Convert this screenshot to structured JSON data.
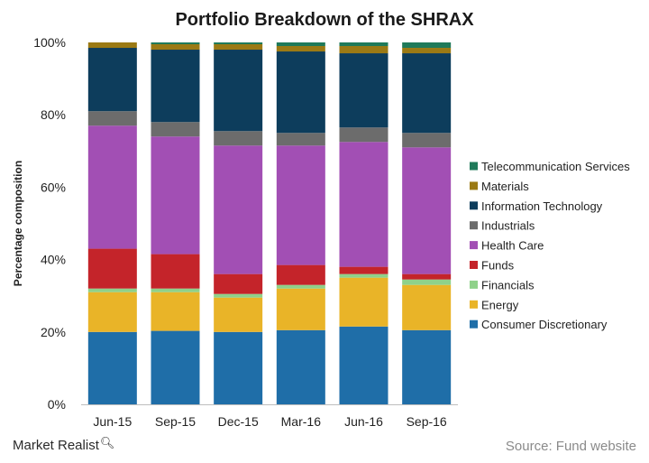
{
  "chart_data": {
    "type": "bar",
    "stacked": true,
    "title": "Portfolio Breakdown of the SHRAX",
    "xlabel": "",
    "ylabel": "Percentage composition",
    "ylim": [
      0,
      100
    ],
    "yticks": [
      "0%",
      "20%",
      "40%",
      "60%",
      "80%",
      "100%"
    ],
    "categories": [
      "Jun-15",
      "Sep-15",
      "Dec-15",
      "Mar-16",
      "Jun-16",
      "Sep-16"
    ],
    "legend_position": "right",
    "grid": false,
    "series": [
      {
        "name": "Consumer Discretionary",
        "color": "#1f6ea8",
        "values": [
          20,
          20.3,
          20,
          20.5,
          21.5,
          20.5
        ]
      },
      {
        "name": "Energy",
        "color": "#e9b428",
        "values": [
          11,
          10.7,
          9.5,
          11.5,
          13.5,
          12.5
        ]
      },
      {
        "name": "Financials",
        "color": "#8fd18a",
        "values": [
          1,
          1,
          1,
          1,
          1,
          1.5
        ]
      },
      {
        "name": "Funds",
        "color": "#c4242a",
        "values": [
          11,
          9.5,
          5.5,
          5.5,
          2,
          1.5
        ]
      },
      {
        "name": "Health Care",
        "color": "#a24fb4",
        "values": [
          34,
          32.5,
          35.5,
          33,
          34.5,
          35
        ]
      },
      {
        "name": "Industrials",
        "color": "#6c6c6c",
        "values": [
          4,
          4,
          4,
          3.5,
          4,
          4
        ]
      },
      {
        "name": "Information Technology",
        "color": "#0d3d5c",
        "values": [
          17.5,
          20,
          22.5,
          22.5,
          20.5,
          22
        ]
      },
      {
        "name": "Materials",
        "color": "#9b7a14",
        "values": [
          1.5,
          1.5,
          1.5,
          1.5,
          2,
          1.5
        ]
      },
      {
        "name": "Telecommunication Services",
        "color": "#1f7a5a",
        "values": [
          0,
          0.5,
          0.5,
          1,
          1,
          1.5
        ]
      }
    ]
  },
  "footer": {
    "brand": "Market Realist",
    "source": "Source: Fund website"
  }
}
